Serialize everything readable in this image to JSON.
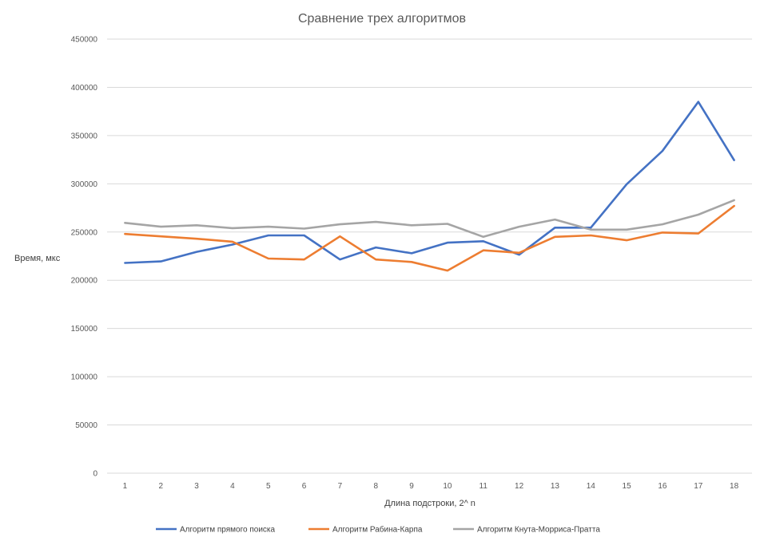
{
  "chart_data": {
    "type": "line",
    "title": "Сравнение трех алгоритмов",
    "xlabel": "Длина подстроки, 2^ n",
    "ylabel": "Время, мкс",
    "ylim": [
      0,
      450000
    ],
    "yticks": [
      "0",
      "50000",
      "100000",
      "150000",
      "200000",
      "250000",
      "300000",
      "350000",
      "400000",
      "450000"
    ],
    "ytick_values": [
      0,
      50000,
      100000,
      150000,
      200000,
      250000,
      300000,
      350000,
      400000,
      450000
    ],
    "categories": [
      "1",
      "2",
      "3",
      "4",
      "5",
      "6",
      "7",
      "8",
      "9",
      "10",
      "11",
      "12",
      "13",
      "14",
      "15",
      "16",
      "17",
      "18"
    ],
    "grid": true,
    "legend_position": "bottom",
    "series": [
      {
        "name": "Алгоритм прямого поиска",
        "color": "#4472c4",
        "values": [
          218000,
          219500,
          229500,
          237000,
          246500,
          246500,
          221500,
          234000,
          228000,
          239000,
          240500,
          226500,
          254500,
          254500,
          299500,
          334000,
          385000,
          324500
        ]
      },
      {
        "name": "Алгоритм Рабина-Карпа",
        "color": "#ed7d31",
        "values": [
          248000,
          245500,
          243000,
          240000,
          222500,
          221500,
          245500,
          221500,
          219000,
          210000,
          231000,
          228500,
          245000,
          246500,
          241500,
          249500,
          248500,
          277000
        ]
      },
      {
        "name": "Алгоритм Кнута-Морриса-Пратта",
        "color": "#a5a5a5",
        "values": [
          259500,
          255500,
          257000,
          254000,
          255500,
          253500,
          258000,
          260500,
          257000,
          258500,
          245000,
          255500,
          263000,
          252500,
          252500,
          258000,
          268000,
          283000
        ]
      }
    ]
  }
}
